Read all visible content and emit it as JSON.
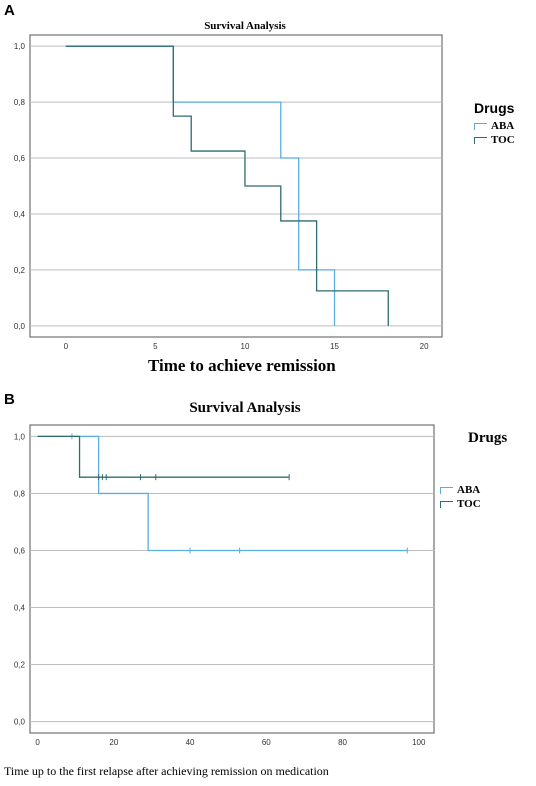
{
  "panels": [
    {
      "letter": "A",
      "legend_title": "Drugs",
      "xlabel": "Time to achieve remission"
    },
    {
      "letter": "B",
      "legend_title": "Drugs",
      "xlabel": "Time up to the first relapse after achieving remission on medication"
    }
  ],
  "colors": {
    "ABA": "#5aaee0",
    "TOC": "#2f6b72",
    "grid": "#bdbdbd"
  },
  "chart_data": [
    {
      "type": "line",
      "subtype": "kaplan-meier",
      "title": "Survival Analysis",
      "xlabel": "Time to achieve remission",
      "ylabel": "",
      "xlim": [
        -2,
        21
      ],
      "ylim": [
        -0.04,
        1.04
      ],
      "xticks": [
        0,
        5,
        10,
        15,
        20
      ],
      "yticks": [
        0.0,
        0.2,
        0.4,
        0.6,
        0.8,
        1.0
      ],
      "ytick_labels": [
        "0,0",
        "0,2",
        "0,4",
        "0,6",
        "0,8",
        "1,0"
      ],
      "grid": "horizontal",
      "legend": "right",
      "series": [
        {
          "name": "ABA",
          "color": "#5aaee0",
          "steps": [
            [
              0,
              1.0
            ],
            [
              6,
              0.8
            ],
            [
              12,
              0.6
            ],
            [
              13,
              0.2
            ],
            [
              15,
              0.0
            ]
          ],
          "censored": []
        },
        {
          "name": "TOC",
          "color": "#2f6b72",
          "steps": [
            [
              0,
              1.0
            ],
            [
              6,
              0.75
            ],
            [
              7,
              0.625
            ],
            [
              10,
              0.5
            ],
            [
              12,
              0.375
            ],
            [
              14,
              0.125
            ],
            [
              18,
              0.0
            ]
          ],
          "censored": []
        }
      ]
    },
    {
      "type": "line",
      "subtype": "kaplan-meier",
      "title": "Survival Analysis",
      "xlabel": "Time up to the first relapse after achieving remission on medication",
      "ylabel": "",
      "xlim": [
        -2,
        104
      ],
      "ylim": [
        -0.04,
        1.04
      ],
      "xticks": [
        0,
        20,
        40,
        60,
        80,
        100
      ],
      "yticks": [
        0.0,
        0.2,
        0.4,
        0.6,
        0.8,
        1.0
      ],
      "ytick_labels": [
        "0,0",
        "0,2",
        "0,4",
        "0,6",
        "0,8",
        "1,0"
      ],
      "grid": "horizontal",
      "legend": "right",
      "series": [
        {
          "name": "ABA",
          "color": "#5aaee0",
          "steps": [
            [
              0,
              1.0
            ],
            [
              16,
              0.8
            ],
            [
              29,
              0.6
            ]
          ],
          "end_x": 97,
          "censored": [
            [
              9,
              1.0
            ],
            [
              40,
              0.6
            ],
            [
              53,
              0.6
            ],
            [
              97,
              0.6
            ]
          ]
        },
        {
          "name": "TOC",
          "color": "#2f6b72",
          "steps": [
            [
              0,
              1.0
            ],
            [
              11,
              0.857
            ]
          ],
          "end_x": 66,
          "censored": [
            [
              16,
              0.857
            ],
            [
              17,
              0.857
            ],
            [
              18,
              0.857
            ],
            [
              27,
              0.857
            ],
            [
              31,
              0.857
            ],
            [
              66,
              0.857
            ]
          ]
        }
      ]
    }
  ]
}
